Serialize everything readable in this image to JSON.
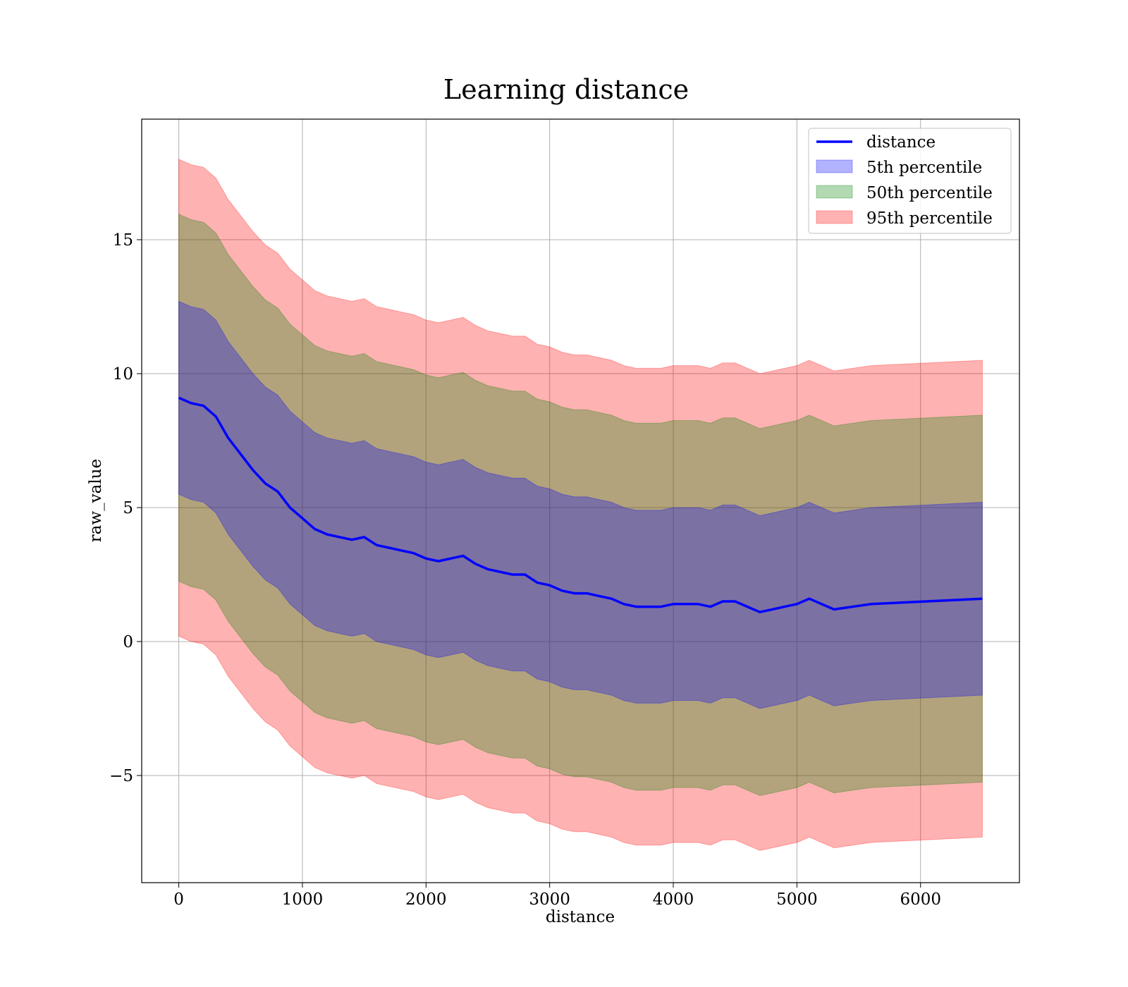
{
  "chart_data": {
    "type": "line",
    "title": "Learning distance",
    "xlabel": "distance",
    "ylabel": "raw_value",
    "xlim": [
      -300,
      6800
    ],
    "ylim": [
      -9,
      19.5
    ],
    "xticks": [
      0,
      1000,
      2000,
      3000,
      4000,
      5000,
      6000
    ],
    "yticks": [
      -5,
      0,
      5,
      10,
      15
    ],
    "ytick_labels": [
      "−5",
      "0",
      "5",
      "10",
      "15"
    ],
    "grid": true,
    "legend_position": "top-right",
    "legend": [
      "distance",
      "5th percentile",
      "50th percentile",
      "95th percentile"
    ],
    "colors": {
      "line": "#0000ff",
      "band_5": "#0000ff",
      "band_50": "#008000",
      "band_95": "#ff0000"
    },
    "series": [
      {
        "name": "distance",
        "x": [
          0,
          100,
          200,
          300,
          400,
          500,
          600,
          700,
          800,
          900,
          1000,
          1100,
          1200,
          1300,
          1400,
          1500,
          1600,
          1700,
          1800,
          1900,
          2000,
          2100,
          2200,
          2300,
          2400,
          2500,
          2600,
          2700,
          2800,
          2900,
          3000,
          3100,
          3200,
          3300,
          3400,
          3500,
          3600,
          3700,
          3800,
          3900,
          4000,
          4100,
          4200,
          4300,
          4400,
          4500,
          4600,
          4700,
          4800,
          4900,
          5000,
          5100,
          5300,
          5600,
          6500
        ],
        "y": [
          9.1,
          8.9,
          8.8,
          8.4,
          7.6,
          7.0,
          6.4,
          5.9,
          5.6,
          5.0,
          4.6,
          4.2,
          4.0,
          3.9,
          3.8,
          3.9,
          3.6,
          3.5,
          3.4,
          3.3,
          3.1,
          3.0,
          3.1,
          3.2,
          2.9,
          2.7,
          2.6,
          2.5,
          2.5,
          2.2,
          2.1,
          1.9,
          1.8,
          1.8,
          1.7,
          1.6,
          1.4,
          1.3,
          1.3,
          1.3,
          1.4,
          1.4,
          1.4,
          1.3,
          1.5,
          1.5,
          1.3,
          1.1,
          1.2,
          1.3,
          1.4,
          1.6,
          1.2,
          1.4,
          1.6
        ]
      },
      {
        "name": "5th percentile",
        "half_width": 3.6
      },
      {
        "name": "50th percentile",
        "half_width": 6.85
      },
      {
        "name": "95th percentile",
        "half_width": 8.9
      }
    ]
  }
}
